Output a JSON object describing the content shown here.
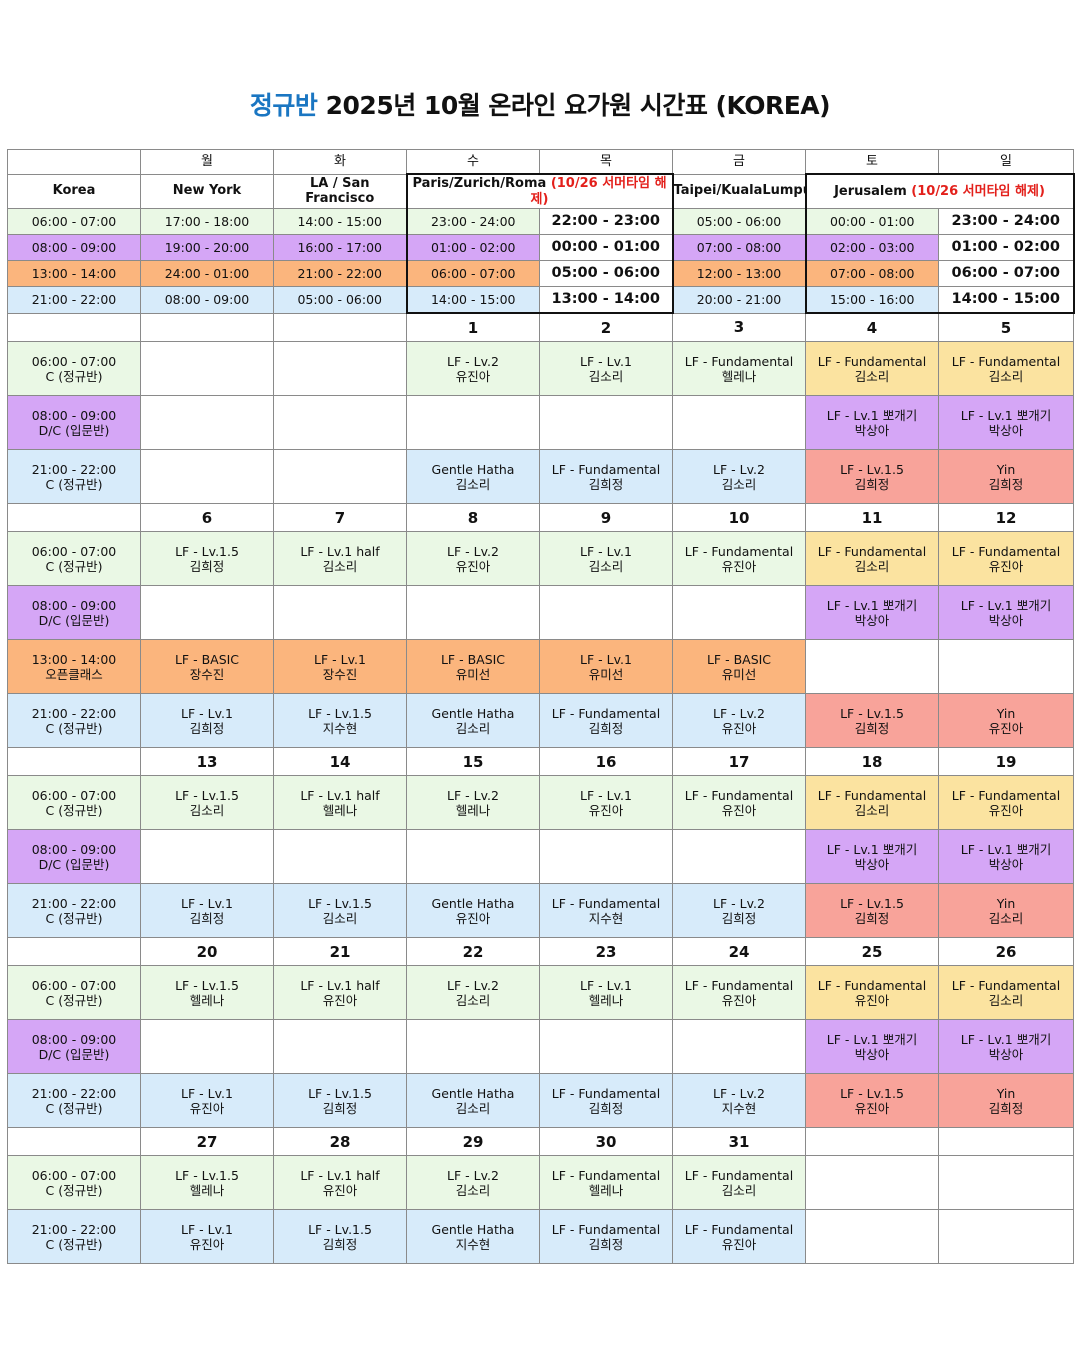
{
  "title": {
    "accent": "정규반",
    "rest": " 2025년 10월 온라인 요가원 시간표 (KOREA)"
  },
  "days": [
    "월",
    "화",
    "수",
    "목",
    "금",
    "토",
    "일"
  ],
  "cities": {
    "korea": "Korea",
    "new_york": "New York",
    "la_sf": "LA / San Francisco",
    "paris": "Paris/Zurich/Roma ",
    "paris_note": "(10/26 서머타임 해제)",
    "taipei": "Taipei/KualaLumpur",
    "jerusalem": "Jerusalem ",
    "jerusalem_note": "(10/26 서머타임 해제)"
  },
  "timezones": [
    [
      "06:00 - 07:00",
      "17:00 - 18:00",
      "14:00 - 15:00",
      "23:00 - 24:00",
      "22:00 - 23:00",
      "05:00 - 06:00",
      "00:00 - 01:00",
      "23:00 - 24:00"
    ],
    [
      "08:00 - 09:00",
      "19:00 - 20:00",
      "16:00 - 17:00",
      "01:00 - 02:00",
      "00:00 - 01:00",
      "07:00 - 08:00",
      "02:00 - 03:00",
      "01:00 - 02:00"
    ],
    [
      "13:00 - 14:00",
      "24:00 - 01:00",
      "21:00 - 22:00",
      "06:00 - 07:00",
      "05:00 - 06:00",
      "12:00 - 13:00",
      "07:00 - 08:00",
      "06:00 - 07:00"
    ],
    [
      "21:00 - 22:00",
      "08:00 - 09:00",
      "05:00 - 06:00",
      "14:00 - 15:00",
      "13:00 - 14:00",
      "20:00 - 21:00",
      "15:00 - 16:00",
      "14:00 - 15:00"
    ]
  ],
  "slot_labels": {
    "s06": [
      "06:00 - 07:00",
      "C (정규반)"
    ],
    "s08": [
      "08:00 - 09:00",
      "D/C (입문반)"
    ],
    "s13": [
      "13:00 - 14:00",
      "오픈클래스"
    ],
    "s21": [
      "21:00 - 22:00",
      "C (정규반)"
    ]
  },
  "weeks": [
    {
      "dates": [
        "",
        "",
        "1",
        "2",
        "3",
        "4",
        "5"
      ],
      "slots": [
        {
          "key": "s06",
          "cells": [
            [
              "",
              ""
            ],
            [
              "",
              ""
            ],
            [
              "LF - Lv.2",
              "유진아"
            ],
            [
              "LF - Lv.1",
              "김소리"
            ],
            [
              "LF - Fundamental",
              "헬레나"
            ],
            [
              "LF - Fundamental",
              "김소리"
            ],
            [
              "LF - Fundamental",
              "김소리"
            ]
          ]
        },
        {
          "key": "s08",
          "cells": [
            [
              "",
              ""
            ],
            [
              "",
              ""
            ],
            [
              "",
              ""
            ],
            [
              "",
              ""
            ],
            [
              "",
              ""
            ],
            [
              "LF - Lv.1 뽀개기",
              "박상아"
            ],
            [
              "LF - Lv.1 뽀개기",
              "박상아"
            ]
          ]
        },
        {
          "key": "s21",
          "cells": [
            [
              "",
              ""
            ],
            [
              "",
              ""
            ],
            [
              "Gentle Hatha",
              "김소리"
            ],
            [
              "LF - Fundamental",
              "김희정"
            ],
            [
              "LF - Lv.2",
              "김소리"
            ],
            [
              "LF - Lv.1.5",
              "김희정"
            ],
            [
              "Yin",
              "김희정"
            ]
          ]
        }
      ]
    },
    {
      "dates": [
        "6",
        "7",
        "8",
        "9",
        "10",
        "11",
        "12"
      ],
      "slots": [
        {
          "key": "s06",
          "cells": [
            [
              "LF - Lv.1.5",
              "김희정"
            ],
            [
              "LF - Lv.1 half",
              "김소리"
            ],
            [
              "LF - Lv.2",
              "유진아"
            ],
            [
              "LF - Lv.1",
              "김소리"
            ],
            [
              "LF - Fundamental",
              "유진아"
            ],
            [
              "LF - Fundamental",
              "김소리"
            ],
            [
              "LF - Fundamental",
              "유진아"
            ]
          ]
        },
        {
          "key": "s08",
          "cells": [
            [
              "",
              ""
            ],
            [
              "",
              ""
            ],
            [
              "",
              ""
            ],
            [
              "",
              ""
            ],
            [
              "",
              ""
            ],
            [
              "LF - Lv.1 뽀개기",
              "박상아"
            ],
            [
              "LF - Lv.1 뽀개기",
              "박상아"
            ]
          ]
        },
        {
          "key": "s13",
          "cells": [
            [
              "LF - BASIC",
              "장수진"
            ],
            [
              "LF - Lv.1",
              "장수진"
            ],
            [
              "LF - BASIC",
              "유미선"
            ],
            [
              "LF - Lv.1",
              "유미선"
            ],
            [
              "LF - BASIC",
              "유미선"
            ],
            [
              "",
              ""
            ],
            [
              "",
              ""
            ]
          ]
        },
        {
          "key": "s21",
          "cells": [
            [
              "LF - Lv.1",
              "김희정"
            ],
            [
              "LF - Lv.1.5",
              "지수현"
            ],
            [
              "Gentle Hatha",
              "김소리"
            ],
            [
              "LF - Fundamental",
              "김희정"
            ],
            [
              "LF - Lv.2",
              "유진아"
            ],
            [
              "LF - Lv.1.5",
              "김희정"
            ],
            [
              "Yin",
              "유진아"
            ]
          ]
        }
      ]
    },
    {
      "dates": [
        "13",
        "14",
        "15",
        "16",
        "17",
        "18",
        "19"
      ],
      "slots": [
        {
          "key": "s06",
          "cells": [
            [
              "LF - Lv.1.5",
              "김소리"
            ],
            [
              "LF - Lv.1 half",
              "헬레나"
            ],
            [
              "LF - Lv.2",
              "헬레나"
            ],
            [
              "LF - Lv.1",
              "유진아"
            ],
            [
              "LF - Fundamental",
              "유진아"
            ],
            [
              "LF - Fundamental",
              "김소리"
            ],
            [
              "LF - Fundamental",
              "유진아"
            ]
          ]
        },
        {
          "key": "s08",
          "cells": [
            [
              "",
              ""
            ],
            [
              "",
              ""
            ],
            [
              "",
              ""
            ],
            [
              "",
              ""
            ],
            [
              "",
              ""
            ],
            [
              "LF - Lv.1 뽀개기",
              "박상아"
            ],
            [
              "LF - Lv.1 뽀개기",
              "박상아"
            ]
          ]
        },
        {
          "key": "s21",
          "cells": [
            [
              "LF - Lv.1",
              "김희정"
            ],
            [
              "LF - Lv.1.5",
              "김소리"
            ],
            [
              "Gentle Hatha",
              "유진아"
            ],
            [
              "LF - Fundamental",
              "지수현"
            ],
            [
              "LF - Lv.2",
              "김희정"
            ],
            [
              "LF - Lv.1.5",
              "김희정"
            ],
            [
              "Yin",
              "김소리"
            ]
          ]
        }
      ]
    },
    {
      "dates": [
        "20",
        "21",
        "22",
        "23",
        "24",
        "25",
        "26"
      ],
      "slots": [
        {
          "key": "s06",
          "cells": [
            [
              "LF - Lv.1.5",
              "헬레나"
            ],
            [
              "LF - Lv.1 half",
              "유진아"
            ],
            [
              "LF - Lv.2",
              "김소리"
            ],
            [
              "LF - Lv.1",
              "헬레나"
            ],
            [
              "LF - Fundamental",
              "유진아"
            ],
            [
              "LF - Fundamental",
              "유진아"
            ],
            [
              "LF - Fundamental",
              "김소리"
            ]
          ]
        },
        {
          "key": "s08",
          "cells": [
            [
              "",
              ""
            ],
            [
              "",
              ""
            ],
            [
              "",
              ""
            ],
            [
              "",
              ""
            ],
            [
              "",
              ""
            ],
            [
              "LF - Lv.1 뽀개기",
              "박상아"
            ],
            [
              "LF - Lv.1 뽀개기",
              "박상아"
            ]
          ]
        },
        {
          "key": "s21",
          "cells": [
            [
              "LF - Lv.1",
              "유진아"
            ],
            [
              "LF - Lv.1.5",
              "김희정"
            ],
            [
              "Gentle Hatha",
              "김소리"
            ],
            [
              "LF - Fundamental",
              "김희정"
            ],
            [
              "LF - Lv.2",
              "지수현"
            ],
            [
              "LF - Lv.1.5",
              "유진아"
            ],
            [
              "Yin",
              "김희정"
            ]
          ]
        }
      ]
    },
    {
      "dates": [
        "27",
        "28",
        "29",
        "30",
        "31",
        "",
        ""
      ],
      "slots": [
        {
          "key": "s06",
          "cells": [
            [
              "LF - Lv.1.5",
              "헬레나"
            ],
            [
              "LF - Lv.1 half",
              "유진아"
            ],
            [
              "LF - Lv.2",
              "김소리"
            ],
            [
              "LF - Fundamental",
              "헬레나"
            ],
            [
              "LF - Fundamental",
              "김소리"
            ],
            [
              "",
              ""
            ],
            [
              "",
              ""
            ]
          ]
        },
        {
          "key": "s21",
          "cells": [
            [
              "LF - Lv.1",
              "유진아"
            ],
            [
              "LF - Lv.1.5",
              "김희정"
            ],
            [
              "Gentle Hatha",
              "지수현"
            ],
            [
              "LF - Fundamental",
              "김희정"
            ],
            [
              "LF - Fundamental",
              "유진아"
            ],
            [
              "",
              ""
            ],
            [
              "",
              ""
            ]
          ]
        }
      ]
    }
  ],
  "colors": {
    "title_accent": "#1a76c2",
    "note_red": "#e3201b",
    "morning_green": "#eaf8e5",
    "beginner_purple": "#d5a6f6",
    "open_orange": "#fbb57d",
    "evening_blue": "#d7ebfa",
    "weekend_yellow": "#fbe3a0",
    "weekend_red": "#f8a39a"
  }
}
